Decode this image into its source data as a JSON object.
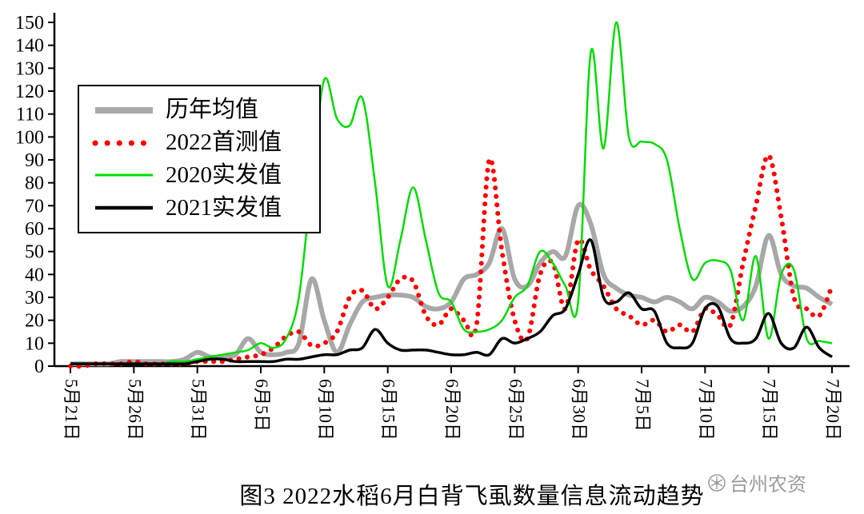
{
  "title": "图3 2022水稻6月白背飞虱数量信息流动趋势",
  "watermark": {
    "text": "台州农资",
    "icon": "flower-seal-logo",
    "color": "#9b9b9b"
  },
  "chart_data": {
    "type": "line",
    "title": "图3 2022水稻6月白背飞虱数量信息流动趋势",
    "ylim": [
      0,
      150
    ],
    "y_ticks": [
      0,
      10,
      20,
      30,
      40,
      50,
      60,
      70,
      80,
      90,
      100,
      110,
      120,
      130,
      140,
      150
    ],
    "grid": false,
    "legend_position": "top-left",
    "x": [
      "5月21日",
      "5月22日",
      "5月23日",
      "5月24日",
      "5月25日",
      "5月26日",
      "5月27日",
      "5月28日",
      "5月29日",
      "5月30日",
      "5月31日",
      "6月1日",
      "6月2日",
      "6月3日",
      "6月4日",
      "6月5日",
      "6月6日",
      "6月7日",
      "6月8日",
      "6月9日",
      "6月10日",
      "6月11日",
      "6月12日",
      "6月13日",
      "6月14日",
      "6月15日",
      "6月16日",
      "6月17日",
      "6月18日",
      "6月19日",
      "6月20日",
      "6月21日",
      "6月22日",
      "6月23日",
      "6月24日",
      "6月25日",
      "6月26日",
      "6月27日",
      "6月28日",
      "6月29日",
      "6月30日",
      "7月1日",
      "7月2日",
      "7月3日",
      "7月4日",
      "7月5日",
      "7月6日",
      "7月7日",
      "7月8日",
      "7月9日",
      "7月10日",
      "7月11日",
      "7月12日",
      "7月13日",
      "7月14日",
      "7月15日",
      "7月16日",
      "7月17日",
      "7月18日",
      "7月19日",
      "7月20日"
    ],
    "x_tick_labels": [
      "5月21日",
      "5月26日",
      "5月31日",
      "6月5日",
      "6月10日",
      "6月15日",
      "6月20日",
      "6月25日",
      "6月30日",
      "7月5日",
      "7月10日",
      "7月15日",
      "7月20日"
    ],
    "x_tick_indices": [
      0,
      5,
      10,
      15,
      20,
      25,
      30,
      35,
      40,
      45,
      50,
      55,
      60
    ],
    "series": [
      {
        "key": "avg",
        "name": "历年均值",
        "color": "#a8a8a8",
        "style": "solid",
        "width": 6,
        "values": [
          1,
          1,
          1,
          1,
          2,
          2,
          2,
          2,
          2,
          3,
          6,
          4,
          4,
          5,
          12,
          6,
          5,
          6,
          10,
          38,
          20,
          6,
          18,
          28,
          30,
          31,
          31,
          30,
          26,
          25,
          28,
          38,
          40,
          45,
          60,
          38,
          35,
          45,
          50,
          48,
          70,
          62,
          40,
          34,
          31,
          30,
          28,
          30,
          28,
          25,
          30,
          28,
          24,
          26,
          35,
          57,
          40,
          35,
          34,
          30,
          27
        ]
      },
      {
        "key": "2022",
        "name": "2022首测值",
        "color": "#fe0000",
        "style": "dotted",
        "width": 6,
        "values": [
          0,
          0,
          1,
          1,
          1,
          2,
          1,
          1,
          1,
          1,
          2,
          2,
          2,
          3,
          4,
          5,
          8,
          13,
          15,
          9,
          10,
          15,
          30,
          33,
          25,
          30,
          38,
          37,
          22,
          18,
          25,
          20,
          18,
          90,
          50,
          20,
          12,
          40,
          45,
          25,
          55,
          42,
          35,
          25,
          22,
          18,
          20,
          15,
          18,
          15,
          25,
          22,
          18,
          45,
          70,
          92,
          65,
          30,
          25,
          22,
          35
        ]
      },
      {
        "key": "2020",
        "name": "2020实发值",
        "color": "#00dd00",
        "style": "solid",
        "width": 2.5,
        "values": [
          1,
          1,
          1,
          1,
          1,
          1,
          1,
          1,
          2,
          2,
          3,
          4,
          5,
          6,
          7,
          10,
          8,
          12,
          30,
          80,
          125,
          108,
          105,
          117,
          80,
          35,
          55,
          78,
          55,
          32,
          28,
          16,
          15,
          16,
          20,
          30,
          35,
          50,
          45,
          35,
          28,
          137,
          95,
          150,
          100,
          98,
          97,
          90,
          60,
          38,
          45,
          46,
          42,
          20,
          48,
          12,
          40,
          42,
          12,
          11,
          10
        ]
      },
      {
        "key": "2021",
        "name": "2021实发值",
        "color": "#000000",
        "style": "solid",
        "width": 3.5,
        "values": [
          1,
          1,
          1,
          1,
          1,
          1,
          1,
          1,
          1,
          1,
          2,
          3,
          3,
          2,
          2,
          2,
          2,
          3,
          3,
          4,
          5,
          5,
          7,
          8,
          16,
          10,
          7,
          7,
          7,
          6,
          5,
          5,
          6,
          5,
          12,
          10,
          12,
          15,
          22,
          25,
          40,
          55,
          30,
          28,
          32,
          25,
          24,
          10,
          8,
          10,
          25,
          26,
          12,
          10,
          12,
          23,
          10,
          8,
          17,
          8,
          4
        ]
      }
    ]
  }
}
